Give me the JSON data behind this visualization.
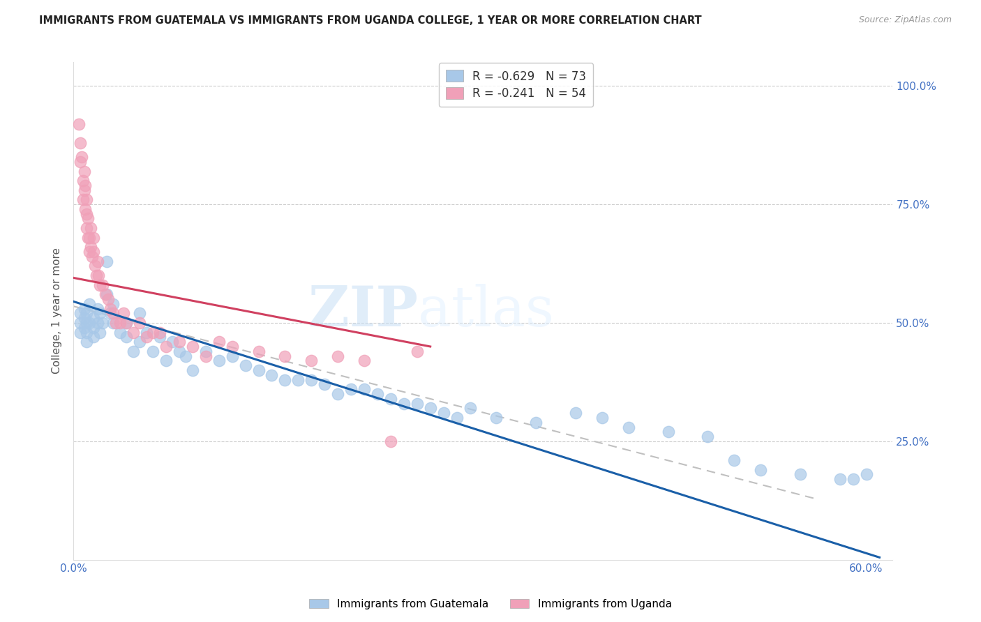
{
  "title": "IMMIGRANTS FROM GUATEMALA VS IMMIGRANTS FROM UGANDA COLLEGE, 1 YEAR OR MORE CORRELATION CHART",
  "source": "Source: ZipAtlas.com",
  "ylabel": "College, 1 year or more",
  "xlim": [
    0.0,
    0.62
  ],
  "ylim": [
    0.0,
    1.05
  ],
  "guatemala_color": "#a8c8e8",
  "uganda_color": "#f0a0b8",
  "trendline_guatemala_color": "#1a5fa8",
  "trendline_uganda_color": "#d04060",
  "trendline_gray_color": "#c0c0c0",
  "guatemala_R": -0.629,
  "guatemala_N": 73,
  "uganda_R": -0.241,
  "uganda_N": 54,
  "watermark_zip": "ZIP",
  "watermark_atlas": "atlas",
  "guatemala_x": [
    0.005,
    0.005,
    0.005,
    0.008,
    0.008,
    0.008,
    0.01,
    0.01,
    0.01,
    0.01,
    0.012,
    0.012,
    0.015,
    0.015,
    0.015,
    0.018,
    0.018,
    0.02,
    0.02,
    0.022,
    0.025,
    0.025,
    0.028,
    0.03,
    0.03,
    0.035,
    0.04,
    0.04,
    0.045,
    0.05,
    0.05,
    0.055,
    0.06,
    0.065,
    0.07,
    0.075,
    0.08,
    0.085,
    0.09,
    0.1,
    0.11,
    0.12,
    0.13,
    0.14,
    0.15,
    0.16,
    0.17,
    0.18,
    0.19,
    0.2,
    0.21,
    0.22,
    0.23,
    0.24,
    0.25,
    0.26,
    0.27,
    0.28,
    0.29,
    0.3,
    0.32,
    0.35,
    0.38,
    0.4,
    0.42,
    0.45,
    0.48,
    0.5,
    0.52,
    0.55,
    0.58,
    0.59,
    0.6
  ],
  "guatemala_y": [
    0.5,
    0.48,
    0.52,
    0.51,
    0.49,
    0.53,
    0.5,
    0.52,
    0.48,
    0.46,
    0.5,
    0.54,
    0.49,
    0.47,
    0.51,
    0.5,
    0.53,
    0.48,
    0.52,
    0.5,
    0.63,
    0.56,
    0.52,
    0.5,
    0.54,
    0.48,
    0.5,
    0.47,
    0.44,
    0.52,
    0.46,
    0.48,
    0.44,
    0.47,
    0.42,
    0.46,
    0.44,
    0.43,
    0.4,
    0.44,
    0.42,
    0.43,
    0.41,
    0.4,
    0.39,
    0.38,
    0.38,
    0.38,
    0.37,
    0.35,
    0.36,
    0.36,
    0.35,
    0.34,
    0.33,
    0.33,
    0.32,
    0.31,
    0.3,
    0.32,
    0.3,
    0.29,
    0.31,
    0.3,
    0.28,
    0.27,
    0.26,
    0.21,
    0.19,
    0.18,
    0.17,
    0.17,
    0.18
  ],
  "uganda_x": [
    0.004,
    0.005,
    0.005,
    0.006,
    0.007,
    0.007,
    0.008,
    0.008,
    0.009,
    0.009,
    0.01,
    0.01,
    0.01,
    0.011,
    0.011,
    0.012,
    0.012,
    0.013,
    0.013,
    0.014,
    0.015,
    0.015,
    0.016,
    0.017,
    0.018,
    0.019,
    0.02,
    0.022,
    0.024,
    0.026,
    0.028,
    0.03,
    0.032,
    0.035,
    0.038,
    0.04,
    0.045,
    0.05,
    0.055,
    0.06,
    0.065,
    0.07,
    0.08,
    0.09,
    0.1,
    0.11,
    0.12,
    0.14,
    0.16,
    0.18,
    0.2,
    0.22,
    0.24,
    0.26
  ],
  "uganda_y": [
    0.92,
    0.88,
    0.84,
    0.85,
    0.8,
    0.76,
    0.82,
    0.78,
    0.74,
    0.79,
    0.7,
    0.73,
    0.76,
    0.68,
    0.72,
    0.68,
    0.65,
    0.66,
    0.7,
    0.64,
    0.68,
    0.65,
    0.62,
    0.6,
    0.63,
    0.6,
    0.58,
    0.58,
    0.56,
    0.55,
    0.53,
    0.52,
    0.5,
    0.5,
    0.52,
    0.5,
    0.48,
    0.5,
    0.47,
    0.48,
    0.48,
    0.45,
    0.46,
    0.45,
    0.43,
    0.46,
    0.45,
    0.44,
    0.43,
    0.42,
    0.43,
    0.42,
    0.25,
    0.44
  ]
}
